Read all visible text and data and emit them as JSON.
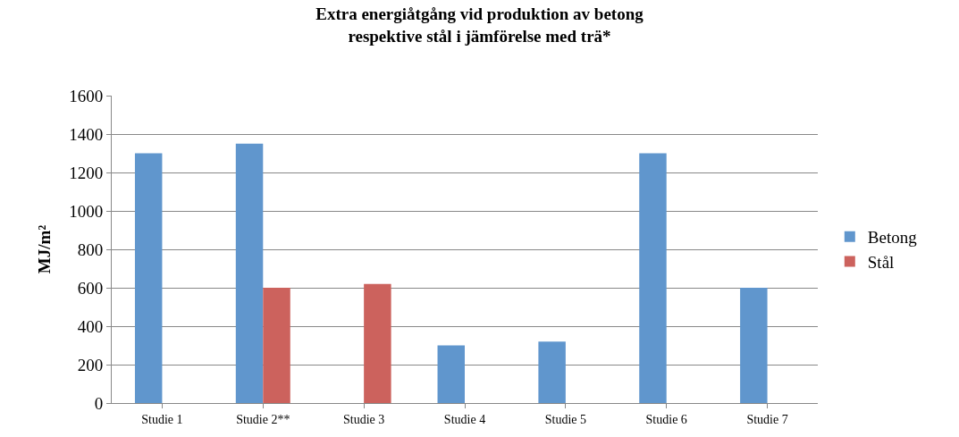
{
  "chart_data": {
    "type": "bar",
    "title": "Extra energiåtgång vid produktion av betong\nrespektive stål i jämförelse med trä*",
    "ylabel": "MJ/m²",
    "categories": [
      "Studie 1",
      "Studie 2**",
      "Studie 3",
      "Studie 4",
      "Studie 5",
      "Studie 6",
      "Studie 7"
    ],
    "series": [
      {
        "name": "Betong",
        "color": "#6096cd",
        "values": [
          1300,
          1350,
          null,
          300,
          320,
          1300,
          600
        ]
      },
      {
        "name": "Stål",
        "color": "#cc625d",
        "values": [
          null,
          600,
          620,
          null,
          null,
          null,
          null
        ]
      }
    ],
    "ylim": [
      0,
      1600
    ],
    "yticks": [
      0,
      200,
      400,
      600,
      800,
      1000,
      1200,
      1400,
      1600
    ],
    "grid": "y",
    "legend": "right"
  }
}
